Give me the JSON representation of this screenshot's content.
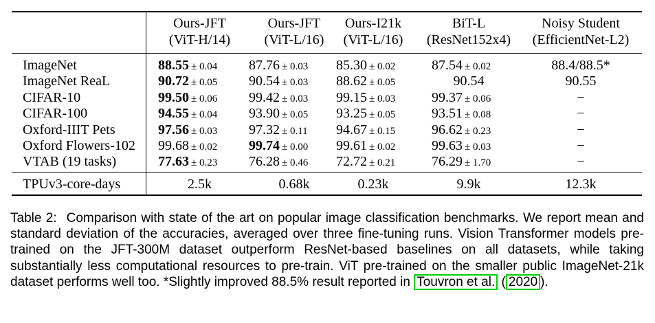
{
  "table": {
    "columns": [
      {
        "line1": "Ours-JFT",
        "line2": "(ViT-H/14)"
      },
      {
        "line1": "Ours-JFT",
        "line2": "(ViT-L/16)"
      },
      {
        "line1": "Ours-I21k",
        "line2": "(ViT-L/16)"
      },
      {
        "line1": "BiT-L",
        "line2": "(ResNet152x4)"
      },
      {
        "line1": "Noisy Student",
        "line2": "(EfficientNet-L2)"
      }
    ],
    "rows": [
      {
        "label": "ImageNet",
        "cells": [
          {
            "v": "88.55",
            "s": "± 0.04",
            "bold": true
          },
          {
            "v": "87.76",
            "s": "± 0.03"
          },
          {
            "v": "85.30",
            "s": "± 0.02"
          },
          {
            "v": "87.54",
            "s": "± 0.02"
          },
          {
            "v": "88.4/88.5*",
            "s": ""
          }
        ]
      },
      {
        "label": "ImageNet ReaL",
        "cells": [
          {
            "v": "90.72",
            "s": "± 0.05",
            "bold": true
          },
          {
            "v": "90.54",
            "s": "± 0.03"
          },
          {
            "v": "88.62",
            "s": "± 0.05"
          },
          {
            "v": "90.54",
            "s": ""
          },
          {
            "v": "90.55",
            "s": ""
          }
        ]
      },
      {
        "label": "CIFAR-10",
        "cells": [
          {
            "v": "99.50",
            "s": "± 0.06",
            "bold": true
          },
          {
            "v": "99.42",
            "s": "± 0.03"
          },
          {
            "v": "99.15",
            "s": "± 0.03"
          },
          {
            "v": "99.37",
            "s": "± 0.06"
          },
          {
            "v": "−",
            "s": ""
          }
        ]
      },
      {
        "label": "CIFAR-100",
        "cells": [
          {
            "v": "94.55",
            "s": "± 0.04",
            "bold": true
          },
          {
            "v": "93.90",
            "s": "± 0.05"
          },
          {
            "v": "93.25",
            "s": "± 0.05"
          },
          {
            "v": "93.51",
            "s": "± 0.08"
          },
          {
            "v": "−",
            "s": ""
          }
        ]
      },
      {
        "label": "Oxford-IIIT Pets",
        "cells": [
          {
            "v": "97.56",
            "s": "± 0.03",
            "bold": true
          },
          {
            "v": "97.32",
            "s": "± 0.11"
          },
          {
            "v": "94.67",
            "s": "± 0.15"
          },
          {
            "v": "96.62",
            "s": "± 0.23"
          },
          {
            "v": "−",
            "s": ""
          }
        ]
      },
      {
        "label": "Oxford Flowers-102",
        "cells": [
          {
            "v": "99.68",
            "s": "± 0.02"
          },
          {
            "v": "99.74",
            "s": "± 0.00",
            "bold": true
          },
          {
            "v": "99.61",
            "s": "± 0.02"
          },
          {
            "v": "99.63",
            "s": "± 0.03"
          },
          {
            "v": "−",
            "s": ""
          }
        ]
      },
      {
        "label": "VTAB (19 tasks)",
        "cells": [
          {
            "v": "77.63",
            "s": "± 0.23",
            "bold": true
          },
          {
            "v": "76.28",
            "s": "± 0.46"
          },
          {
            "v": "72.72",
            "s": "± 0.21"
          },
          {
            "v": "76.29",
            "s": "± 1.70"
          },
          {
            "v": "−",
            "s": ""
          }
        ]
      }
    ],
    "compute_row": {
      "label": "TPUv3-core-days",
      "cells": [
        "2.5k",
        "0.68k",
        "0.23k",
        "9.9k",
        "12.3k"
      ]
    }
  },
  "caption": {
    "label": "Table 2:",
    "text_before_cite": "Comparison with state of the art on popular image classification benchmarks. We report mean and standard deviation of the accuracies, averaged over three fine-tuning runs. Vision Transformer models pre-trained on the JFT-300M dataset outperform ResNet-based baselines on all datasets, while taking substantially less computational resources to pre-train. ViT pre-trained on the smaller public ImageNet-21k dataset performs well too. *Slightly improved 88.5% result reported in",
    "cite_author": "Touvron et al.",
    "cite_year": "2020",
    "cite_open": "(",
    "cite_close": ")."
  },
  "colors": {
    "text": "#000000",
    "citation_box": "#00d100"
  }
}
